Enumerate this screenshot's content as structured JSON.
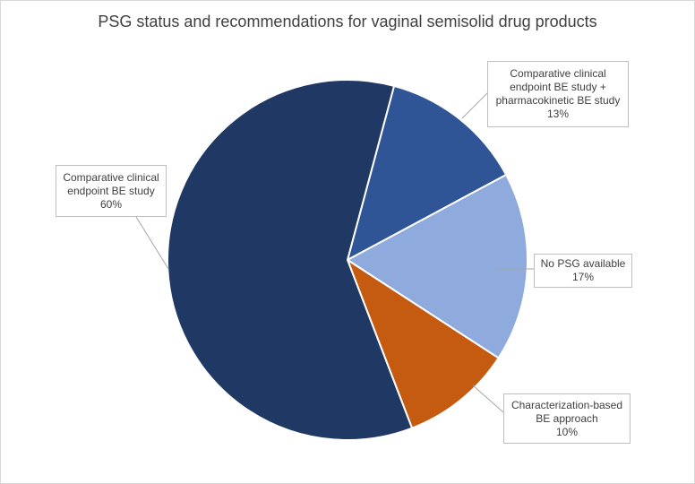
{
  "chart_data": {
    "type": "pie",
    "title": "PSG status and recommendations for vaginal semisolid drug products",
    "start_angle_deg": 15,
    "slices": [
      {
        "label_lines": [
          "Comparative clinical",
          "endpoint BE study +",
          "pharmacokinetic BE study"
        ],
        "label": "Comparative clinical endpoint BE study + pharmacokinetic BE study",
        "value": 13,
        "value_label": "13%",
        "color": "#2f5597"
      },
      {
        "label_lines": [
          "No PSG available"
        ],
        "label": "No PSG available",
        "value": 17,
        "value_label": "17%",
        "color": "#8faadc"
      },
      {
        "label_lines": [
          "Characterization-based",
          "BE approach"
        ],
        "label": "Characterization-based BE approach",
        "value": 10,
        "value_label": "10%",
        "color": "#c55a11"
      },
      {
        "label_lines": [
          "Comparative clinical",
          "endpoint BE study"
        ],
        "label": "Comparative clinical endpoint BE study",
        "value": 60,
        "value_label": "60%",
        "color": "#203864"
      }
    ],
    "legend": "none",
    "data_labels": "callouts"
  }
}
